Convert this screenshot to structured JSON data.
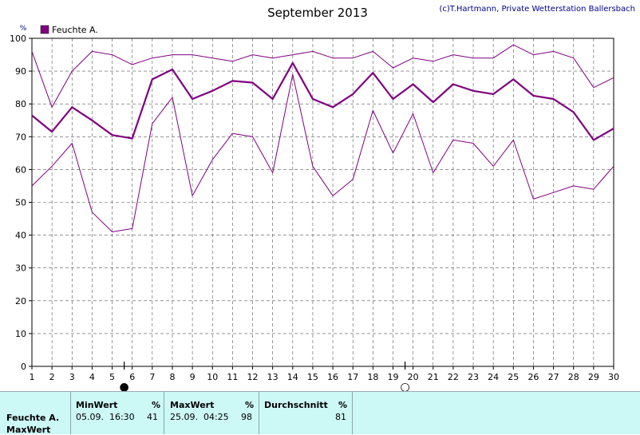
{
  "chart_data": {
    "type": "line",
    "title": "September 2013",
    "credit": "(c)T.Hartmann, Private Wetterstation Ballersbach",
    "ylabel": "%",
    "ylim": [
      0,
      100
    ],
    "yticks": [
      0,
      10,
      20,
      30,
      40,
      50,
      60,
      70,
      80,
      90,
      100
    ],
    "x": [
      1,
      2,
      3,
      4,
      5,
      6,
      7,
      8,
      9,
      10,
      11,
      12,
      13,
      14,
      15,
      16,
      17,
      18,
      19,
      20,
      21,
      22,
      23,
      24,
      25,
      26,
      27,
      28,
      29,
      30
    ],
    "xlim": [
      1,
      30
    ],
    "grid": true,
    "legend": {
      "position": "top-left",
      "label": "Feuchte A.",
      "color": "#800080"
    },
    "series": [
      {
        "role": "max",
        "color": "#800080",
        "values": [
          96,
          79,
          90,
          96,
          95,
          92,
          94,
          95,
          95,
          94,
          93,
          95,
          94,
          95,
          96,
          94,
          94,
          96,
          91,
          94,
          93,
          95,
          94,
          94,
          98,
          95,
          96,
          94,
          85,
          88
        ]
      },
      {
        "role": "avg",
        "color": "#800080",
        "values": [
          76.5,
          71.5,
          79,
          75,
          70.5,
          69.5,
          87.5,
          90.5,
          81.5,
          84,
          87,
          86.5,
          81.5,
          92.5,
          81.5,
          79,
          83,
          89.5,
          81.5,
          86,
          80.5,
          86,
          84,
          83,
          87.5,
          82.5,
          81.5,
          77.5,
          69,
          72.5
        ]
      },
      {
        "role": "min",
        "color": "#800080",
        "values": [
          55,
          61,
          68,
          47,
          41,
          42,
          74,
          82,
          52,
          63,
          71,
          70,
          59,
          89,
          61,
          52,
          57,
          78,
          65,
          77,
          59,
          69,
          68,
          61,
          69,
          51,
          53,
          55,
          54,
          61
        ]
      }
    ],
    "moon_phases": [
      {
        "day": 5.6,
        "phase": "new",
        "symbol": "●"
      },
      {
        "day": 19.6,
        "phase": "full",
        "symbol": "○"
      }
    ]
  },
  "footer": {
    "row_label": "Feuchte A.",
    "row_sub_label": "MaxWert",
    "min": {
      "header": "MinWert",
      "unit": "%",
      "datetime": "05.09.  16:30",
      "value": "41"
    },
    "max": {
      "header": "MaxWert",
      "unit": "%",
      "datetime": "25.09.  04:25",
      "value": "98"
    },
    "avg": {
      "header": "Durchschnitt",
      "unit": "%",
      "value": "81"
    }
  }
}
